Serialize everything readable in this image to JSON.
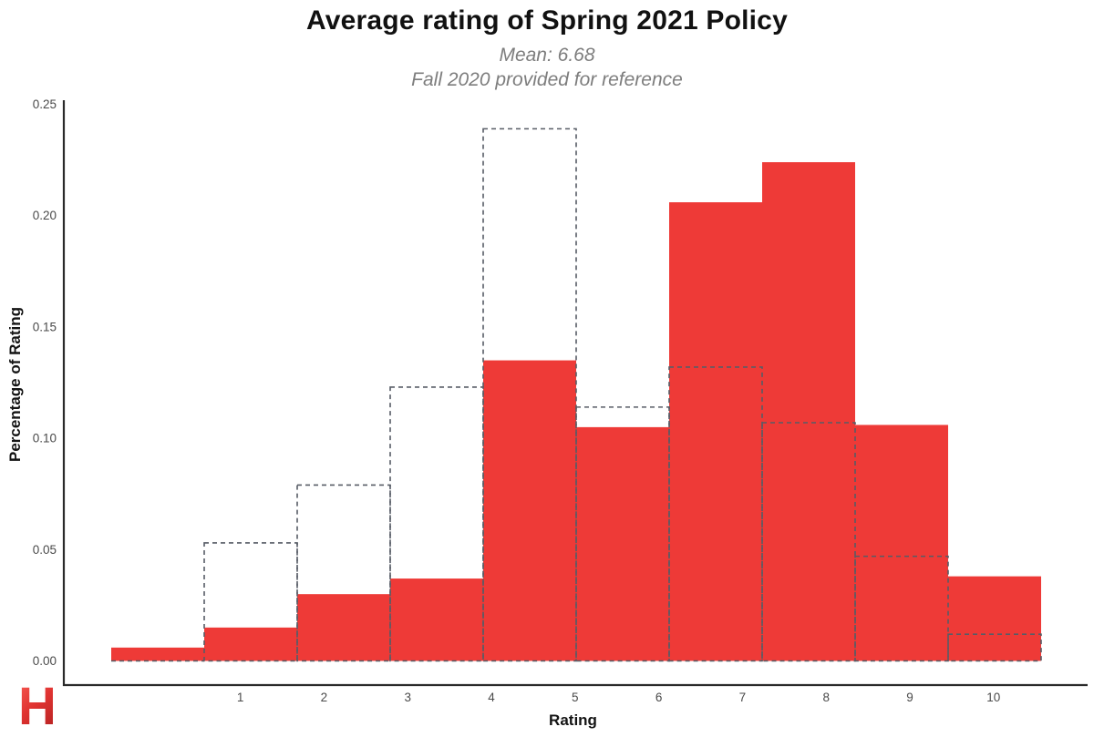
{
  "header": {
    "title": "Average rating of Spring 2021 Policy",
    "subtitle_mean": "Mean: 6.68",
    "subtitle_reference": "Fall 2020 provided for reference"
  },
  "branding": {
    "logo_letter": "H",
    "logo_color": "#d92a27"
  },
  "colors": {
    "bar_fill": "#ee3a37",
    "reference_outline": "#575c66",
    "title_text": "#111111",
    "subtitle_text": "#7d7d7d",
    "axis_line": "#2a2a2a",
    "tick_label": "#4a4a4a",
    "background": "#ffffff"
  },
  "chart_data": {
    "type": "bar",
    "subtype": "overlaid histograms (solid fill vs dashed outline)",
    "title": "Average rating of Spring 2021 Policy",
    "subtitle": [
      "Mean: 6.68",
      "Fall 2020 provided for reference"
    ],
    "mean": 6.68,
    "xlabel": "Rating",
    "ylabel": "Percentage of Rating",
    "x_tick_labels": [
      "1",
      "2",
      "3",
      "4",
      "5",
      "6",
      "7",
      "8",
      "9",
      "10"
    ],
    "y_tick_labels": [
      "0.00",
      "0.05",
      "0.10",
      "0.15",
      "0.20",
      "0.25"
    ],
    "xlim": [
      -0.6,
      10.6
    ],
    "ylim": [
      0,
      0.25
    ],
    "grid": false,
    "legend_position": "none",
    "bins": 10,
    "bin_width": 1.11,
    "bin_centers": [
      0,
      1.11,
      2.22,
      3.33,
      4.44,
      5.56,
      6.67,
      7.78,
      8.89,
      10
    ],
    "series": [
      {
        "name": "Spring 2021",
        "style": "solid red fill",
        "values": [
          0.006,
          0.015,
          0.03,
          0.037,
          0.135,
          0.105,
          0.206,
          0.224,
          0.106,
          0.038
        ]
      },
      {
        "name": "Fall 2020",
        "style": "dashed gray outline",
        "values": [
          0.0,
          0.053,
          0.079,
          0.123,
          0.239,
          0.114,
          0.132,
          0.107,
          0.047,
          0.012
        ]
      }
    ]
  }
}
